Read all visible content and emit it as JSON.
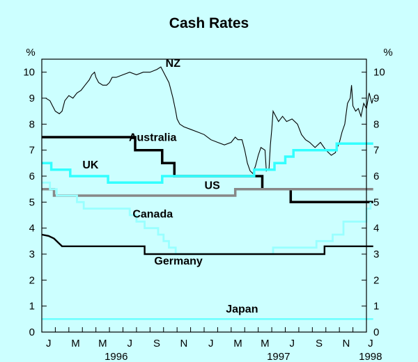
{
  "chart_data": {
    "type": "line",
    "title": "Cash Rates",
    "ylabel_left": "%",
    "ylabel_right": "%",
    "ylim": [
      0,
      10.5
    ],
    "yticks": [
      0,
      1,
      2,
      3,
      4,
      5,
      6,
      7,
      8,
      9,
      10
    ],
    "xlim": [
      0,
      24
    ],
    "xticks": [
      {
        "label": "J",
        "x": 0.5
      },
      {
        "label": "M",
        "x": 2.5
      },
      {
        "label": "M",
        "x": 4.5
      },
      {
        "label": "J",
        "x": 6.5
      },
      {
        "label": "S",
        "x": 8.5
      },
      {
        "label": "N",
        "x": 10.5
      },
      {
        "label": "J",
        "x": 12.5
      },
      {
        "label": "M",
        "x": 14.5
      },
      {
        "label": "M",
        "x": 16.5
      },
      {
        "label": "J",
        "x": 18.5
      },
      {
        "label": "S",
        "x": 20.5
      },
      {
        "label": "N",
        "x": 22.5
      },
      {
        "label": "J",
        "x": 24.3
      }
    ],
    "years": [
      {
        "label": "1996",
        "x": 5.5
      },
      {
        "label": "1997",
        "x": 17.5
      },
      {
        "label": "1998",
        "x": 24.3
      }
    ],
    "series": [
      {
        "name": "NZ",
        "color": "#000000",
        "width": 1.1,
        "points": [
          [
            0,
            9
          ],
          [
            0.3,
            9
          ],
          [
            0.6,
            8.9
          ],
          [
            0.8,
            8.7
          ],
          [
            1.0,
            8.5
          ],
          [
            1.3,
            8.4
          ],
          [
            1.5,
            8.5
          ],
          [
            1.7,
            8.9
          ],
          [
            2.0,
            9.1
          ],
          [
            2.3,
            9.0
          ],
          [
            2.6,
            9.2
          ],
          [
            2.9,
            9.3
          ],
          [
            3.2,
            9.5
          ],
          [
            3.5,
            9.7
          ],
          [
            3.7,
            9.9
          ],
          [
            3.9,
            10.0
          ],
          [
            4.0,
            9.8
          ],
          [
            4.2,
            9.6
          ],
          [
            4.5,
            9.5
          ],
          [
            4.8,
            9.5
          ],
          [
            5.0,
            9.6
          ],
          [
            5.2,
            9.8
          ],
          [
            5.5,
            9.8
          ],
          [
            6.0,
            9.9
          ],
          [
            6.5,
            10.0
          ],
          [
            7.0,
            9.9
          ],
          [
            7.5,
            10.0
          ],
          [
            8.0,
            10.0
          ],
          [
            8.5,
            10.1
          ],
          [
            8.8,
            10.2
          ],
          [
            9.0,
            10.0
          ],
          [
            9.2,
            9.8
          ],
          [
            9.4,
            9.6
          ],
          [
            9.5,
            9.4
          ],
          [
            9.7,
            9.0
          ],
          [
            9.9,
            8.5
          ],
          [
            10.0,
            8.2
          ],
          [
            10.2,
            8.0
          ],
          [
            10.5,
            7.9
          ],
          [
            11.0,
            7.8
          ],
          [
            11.5,
            7.7
          ],
          [
            12.0,
            7.6
          ],
          [
            12.5,
            7.4
          ],
          [
            13.0,
            7.3
          ],
          [
            13.5,
            7.2
          ],
          [
            14.0,
            7.3
          ],
          [
            14.3,
            7.5
          ],
          [
            14.5,
            7.4
          ],
          [
            14.8,
            7.4
          ],
          [
            15.0,
            7.0
          ],
          [
            15.2,
            6.5
          ],
          [
            15.4,
            6.2
          ],
          [
            15.6,
            6.1
          ],
          [
            15.8,
            6.4
          ],
          [
            16.0,
            6.8
          ],
          [
            16.2,
            7.1
          ],
          [
            16.5,
            7.0
          ],
          [
            16.6,
            6.2
          ],
          [
            16.8,
            6.3
          ],
          [
            16.9,
            7.2
          ],
          [
            17.0,
            7.8
          ],
          [
            17.1,
            8.5
          ],
          [
            17.3,
            8.3
          ],
          [
            17.5,
            8.1
          ],
          [
            17.8,
            8.3
          ],
          [
            18.1,
            8.1
          ],
          [
            18.5,
            8.2
          ],
          [
            18.9,
            8.0
          ],
          [
            19.2,
            7.6
          ],
          [
            19.5,
            7.4
          ],
          [
            19.8,
            7.3
          ],
          [
            20.2,
            7.1
          ],
          [
            20.6,
            7.3
          ],
          [
            21.0,
            7.0
          ],
          [
            21.4,
            6.8
          ],
          [
            21.7,
            6.9
          ],
          [
            22.0,
            7.3
          ],
          [
            22.2,
            7.7
          ],
          [
            22.4,
            8.0
          ],
          [
            22.6,
            8.8
          ],
          [
            22.8,
            9.0
          ],
          [
            22.9,
            9.5
          ],
          [
            23.0,
            8.7
          ],
          [
            23.2,
            8.5
          ],
          [
            23.4,
            8.6
          ],
          [
            23.6,
            8.3
          ],
          [
            23.8,
            8.8
          ],
          [
            24.0,
            8.6
          ],
          [
            24.2,
            9.2
          ],
          [
            24.4,
            8.8
          ],
          [
            24.5,
            9.0
          ]
        ]
      },
      {
        "name": "Australia",
        "color": "#000000",
        "width": 3.5,
        "points": [
          [
            0,
            7.5
          ],
          [
            6.9,
            7.5
          ],
          [
            6.9,
            7.0
          ],
          [
            8.9,
            7.0
          ],
          [
            8.9,
            6.5
          ],
          [
            9.8,
            6.5
          ],
          [
            9.8,
            6.0
          ],
          [
            14.5,
            6.0
          ],
          [
            15.9,
            6.0
          ],
          [
            15.9,
            6.0
          ],
          [
            16.3,
            6.0
          ],
          [
            16.3,
            5.5
          ],
          [
            18.4,
            5.5
          ],
          [
            18.4,
            5.0
          ],
          [
            24.5,
            5.0
          ]
        ]
      },
      {
        "name": "UK",
        "color": "#33ffff",
        "width": 3.5,
        "points": [
          [
            0,
            6.5
          ],
          [
            0.7,
            6.5
          ],
          [
            0.7,
            6.25
          ],
          [
            2.1,
            6.25
          ],
          [
            2.1,
            6.0
          ],
          [
            4.9,
            6.0
          ],
          [
            4.9,
            5.75
          ],
          [
            8.9,
            5.75
          ],
          [
            8.9,
            6.0
          ],
          [
            15.7,
            6.0
          ],
          [
            15.7,
            6.25
          ],
          [
            17.2,
            6.25
          ],
          [
            17.2,
            6.5
          ],
          [
            18.0,
            6.5
          ],
          [
            18.0,
            6.75
          ],
          [
            18.6,
            6.75
          ],
          [
            18.6,
            7.0
          ],
          [
            21.8,
            7.0
          ],
          [
            21.8,
            7.25
          ],
          [
            24.5,
            7.25
          ]
        ]
      },
      {
        "name": "US",
        "color": "#888888",
        "width": 3.5,
        "points": [
          [
            0,
            5.5
          ],
          [
            0.9,
            5.5
          ],
          [
            0.9,
            5.25
          ],
          [
            14.3,
            5.25
          ],
          [
            14.3,
            5.5
          ],
          [
            24.5,
            5.5
          ]
        ]
      },
      {
        "name": "Canada",
        "color": "#99ffff",
        "width": 2.8,
        "points": [
          [
            0,
            5.75
          ],
          [
            0.6,
            5.75
          ],
          [
            0.6,
            5.5
          ],
          [
            1.1,
            5.5
          ],
          [
            1.1,
            5.25
          ],
          [
            2.6,
            5.25
          ],
          [
            2.6,
            5.0
          ],
          [
            3.1,
            5.0
          ],
          [
            3.1,
            4.75
          ],
          [
            6.5,
            4.75
          ],
          [
            6.5,
            4.5
          ],
          [
            7.0,
            4.5
          ],
          [
            7.0,
            4.25
          ],
          [
            7.6,
            4.25
          ],
          [
            7.6,
            4.0
          ],
          [
            8.6,
            4.0
          ],
          [
            8.6,
            3.75
          ],
          [
            9.0,
            3.75
          ],
          [
            9.0,
            3.5
          ],
          [
            9.4,
            3.5
          ],
          [
            9.4,
            3.25
          ],
          [
            9.9,
            3.25
          ],
          [
            9.9,
            3.0
          ],
          [
            17.1,
            3.0
          ],
          [
            17.1,
            3.25
          ],
          [
            20.3,
            3.25
          ],
          [
            20.3,
            3.5
          ],
          [
            21.5,
            3.5
          ],
          [
            21.5,
            3.75
          ],
          [
            22.3,
            3.75
          ],
          [
            22.3,
            4.25
          ],
          [
            24.0,
            4.25
          ],
          [
            24.0,
            4.75
          ],
          [
            24.3,
            4.75
          ],
          [
            24.3,
            5.0
          ]
        ]
      },
      {
        "name": "Germany",
        "color": "#000000",
        "width": 2.4,
        "points": [
          [
            0,
            3.75
          ],
          [
            0.5,
            3.7
          ],
          [
            0.9,
            3.6
          ],
          [
            1.2,
            3.45
          ],
          [
            1.5,
            3.3
          ],
          [
            7.6,
            3.3
          ],
          [
            7.6,
            3.0
          ],
          [
            20.9,
            3.0
          ],
          [
            20.9,
            3.3
          ],
          [
            24.5,
            3.3
          ]
        ]
      },
      {
        "name": "Japan",
        "color": "#66ffff",
        "width": 2.4,
        "points": [
          [
            0,
            0.5
          ],
          [
            24.5,
            0.5
          ]
        ]
      }
    ],
    "labels": [
      {
        "text": "NZ",
        "x": 9.7,
        "y": 10.2
      },
      {
        "text": "Australia",
        "x": 8.2,
        "y": 7.35
      },
      {
        "text": "UK",
        "x": 3.6,
        "y": 6.3
      },
      {
        "text": "US",
        "x": 12.6,
        "y": 5.5
      },
      {
        "text": "Canada",
        "x": 8.2,
        "y": 4.4
      },
      {
        "text": "Germany",
        "x": 10.1,
        "y": 2.6
      },
      {
        "text": "Japan",
        "x": 14.8,
        "y": 0.75
      }
    ]
  }
}
